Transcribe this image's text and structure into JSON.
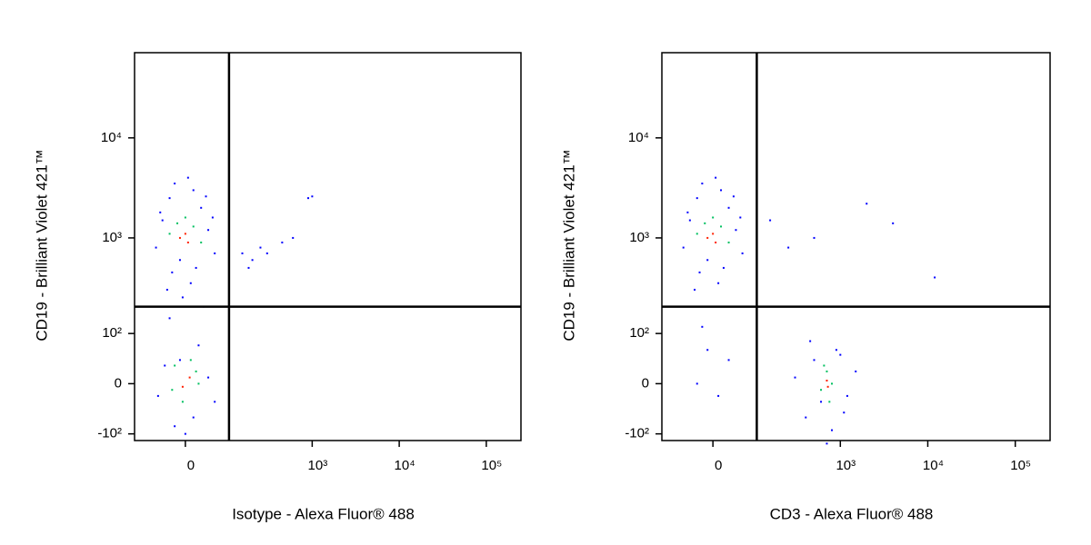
{
  "chart_data": [
    {
      "type": "scatter",
      "scale": "biexponential",
      "xlabel": "Isotype - Alexa Fluor® 488",
      "ylabel": "CD19 - Brilliant Violet 421™",
      "xlim": [
        -125,
        250000
      ],
      "ylim": [
        -120,
        71000
      ],
      "xticks": [
        0,
        {
          "value": 1000,
          "label": "10³"
        },
        {
          "value": 10000,
          "label": "10⁴"
        },
        {
          "value": 100000,
          "label": "10⁵"
        }
      ],
      "yticks": [
        {
          "value": -100,
          "label": "-10²"
        },
        0,
        {
          "value": 100,
          "label": "10²"
        },
        {
          "value": 1000,
          "label": "10³"
        },
        {
          "value": 10000,
          "label": "10⁴"
        }
      ],
      "gates": {
        "x": 100,
        "y": 200
      },
      "series": [
        {
          "color": "#0000ff",
          "x": [
            -60,
            -45,
            -30,
            -20,
            -10,
            5,
            15,
            30,
            45,
            60,
            -50,
            40,
            -25,
            20,
            55,
            -35,
            10,
            -5,
            150,
            200,
            300,
            450,
            600,
            900,
            1000,
            180,
            250,
            -55,
            -40,
            -20,
            0,
            25,
            45,
            60,
            -30,
            35,
            -10,
            15
          ],
          "y": [
            800,
            1500,
            2500,
            3500,
            600,
            4000,
            3000,
            2000,
            1200,
            700,
            1800,
            2600,
            450,
            500,
            1600,
            300,
            350,
            250,
            700,
            600,
            700,
            900,
            1000,
            2500,
            2600,
            500,
            800,
            -20,
            30,
            -80,
            -100,
            70,
            10,
            -30,
            150,
            200,
            40,
            -60
          ]
        },
        {
          "color": "#00c060",
          "x": [
            -30,
            -15,
            0,
            15,
            30,
            -25,
            20,
            -20,
            -5,
            10,
            25
          ],
          "y": [
            1100,
            1400,
            1600,
            1300,
            900,
            -10,
            20,
            30,
            -30,
            40,
            0
          ]
        },
        {
          "color": "#ff2000",
          "x": [
            -10,
            5,
            0,
            -5,
            8
          ],
          "y": [
            1000,
            900,
            1100,
            -5,
            10
          ]
        }
      ]
    },
    {
      "type": "scatter",
      "scale": "biexponential",
      "xlabel": "CD3 - Alexa Fluor® 488",
      "ylabel": "CD19 - Brilliant Violet 421™",
      "xlim": [
        -125,
        250000
      ],
      "ylim": [
        -120,
        71000
      ],
      "xticks": [
        0,
        {
          "value": 1000,
          "label": "10³"
        },
        {
          "value": 10000,
          "label": "10⁴"
        },
        {
          "value": 100000,
          "label": "10⁵"
        }
      ],
      "yticks": [
        {
          "value": -100,
          "label": "-10²"
        },
        0,
        {
          "value": 100,
          "label": "10²"
        },
        {
          "value": 1000,
          "label": "10³"
        },
        {
          "value": 10000,
          "label": "10⁴"
        }
      ],
      "gates": {
        "x": 100,
        "y": 200
      },
      "series": [
        {
          "color": "#0000ff",
          "x": [
            -60,
            -45,
            -30,
            -20,
            -10,
            5,
            15,
            30,
            45,
            60,
            -50,
            40,
            -25,
            20,
            55,
            -35,
            10,
            150,
            250,
            500,
            2000,
            4000,
            12000,
            300,
            400,
            500,
            600,
            800,
            1000,
            1200,
            1500,
            450,
            700,
            900,
            1100,
            -30,
            -10,
            10,
            30,
            -20
          ],
          "y": [
            800,
            1500,
            2500,
            3500,
            600,
            4000,
            3000,
            2000,
            1200,
            700,
            1800,
            2600,
            450,
            500,
            1600,
            300,
            350,
            1500,
            800,
            1000,
            2200,
            1400,
            400,
            10,
            -60,
            40,
            -30,
            -90,
            50,
            -20,
            20,
            80,
            -130,
            60,
            -50,
            0,
            60,
            -20,
            40,
            120
          ]
        },
        {
          "color": "#00c060",
          "x": [
            -30,
            -15,
            0,
            15,
            30,
            600,
            700,
            800,
            650,
            750
          ],
          "y": [
            1100,
            1400,
            1600,
            1300,
            900,
            -10,
            20,
            0,
            30,
            -30
          ]
        },
        {
          "color": "#ff2000",
          "x": [
            -10,
            5,
            0,
            700,
            720
          ],
          "y": [
            1000,
            900,
            1100,
            5,
            -5
          ]
        }
      ]
    }
  ]
}
